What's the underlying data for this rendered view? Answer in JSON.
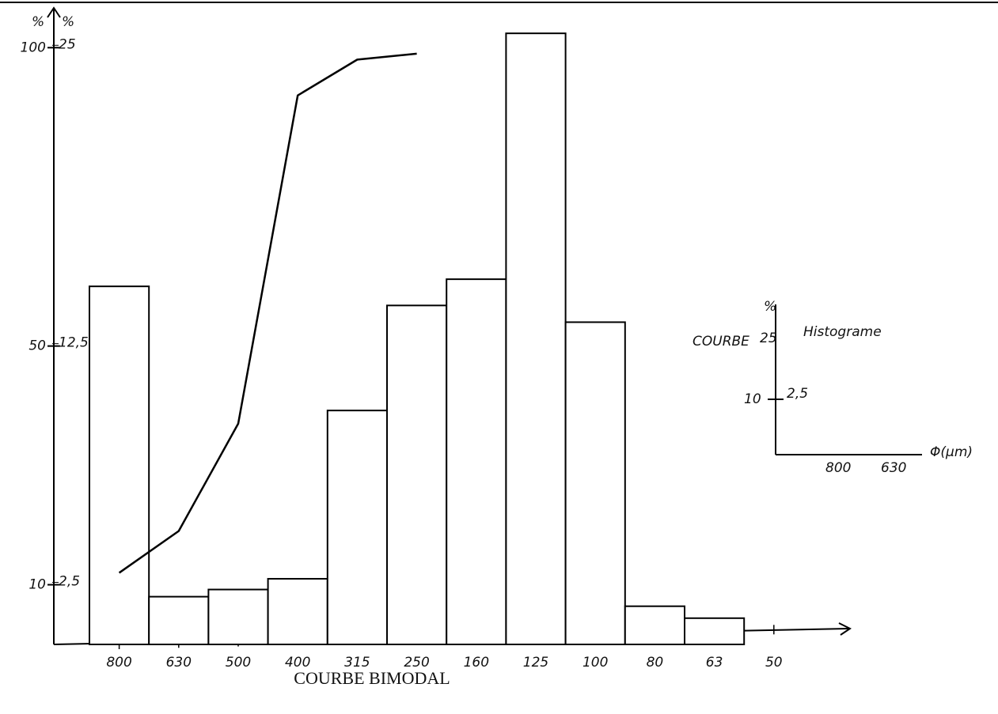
{
  "chart_data": {
    "type": "bar",
    "title": "COURBE BIMODAL",
    "y_label": "%",
    "y2_label": "%",
    "categories": [
      "800",
      "630",
      "500",
      "400",
      "315",
      "250",
      "160",
      "125",
      "100",
      "80",
      "63",
      "50"
    ],
    "ylim": [
      0,
      106
    ],
    "yticks": [
      10,
      50,
      100
    ],
    "y2lim": [
      0,
      26.5
    ],
    "y2ticks": [
      {
        "value": 2.5,
        "label": "2,5"
      },
      {
        "value": 12.5,
        "label": "12,5"
      },
      25
    ],
    "series": [
      {
        "name": "Histograme",
        "type": "bar",
        "axis": "y2",
        "color": "#000000",
        "values": [
          15.0,
          2.0,
          2.3,
          2.75,
          9.8,
          14.2,
          15.3,
          25.6,
          13.5,
          1.6,
          1.1,
          null
        ]
      },
      {
        "name": "COURBE",
        "type": "line",
        "color": "#000000",
        "values": [
          12,
          19,
          37,
          92,
          98,
          99,
          null,
          null,
          null,
          null,
          null,
          null
        ]
      }
    ],
    "legend": {
      "y_label": "%",
      "ticks": [
        "25",
        "10",
        "2,5"
      ],
      "x_ticks": [
        "800",
        "630"
      ],
      "x_label": "Φ(μm)"
    }
  }
}
